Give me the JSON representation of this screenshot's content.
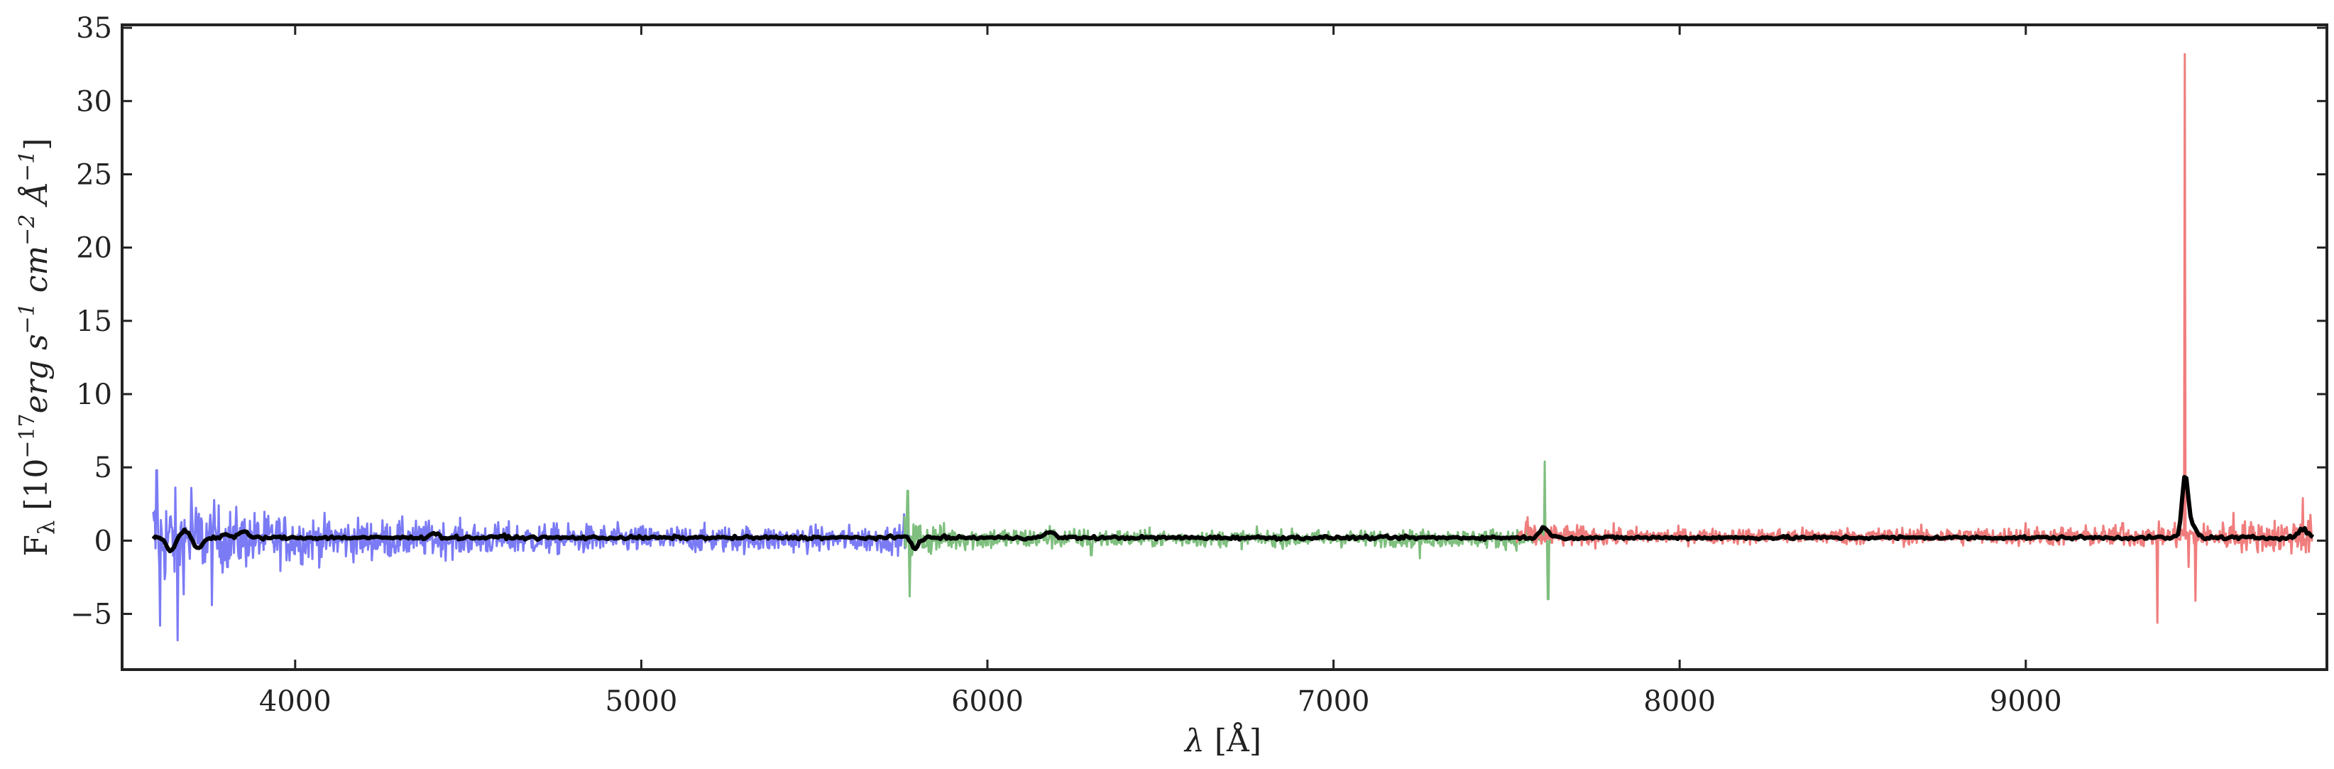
{
  "chart_data": {
    "type": "line",
    "title": "",
    "xlabel": "λ [Å]",
    "ylabel": "F_λ [10^-17 erg s^-1 cm^-2 Å^-1]",
    "ylabel_parts": {
      "main": "F",
      "sub": "λ",
      "open": " [10",
      "exp1": "−17",
      "unit1": "erg s",
      "exp2": "−1",
      "unit2": " cm",
      "exp3": "−2",
      "unit3": " Å",
      "exp4": "−1",
      "close": "]"
    },
    "xlabel_parts": {
      "lambda": "λ",
      "unit": " [Å]"
    },
    "xlim": [
      3500,
      9870
    ],
    "ylim": [
      -8.8,
      35.2
    ],
    "xticks": [
      4000,
      5000,
      6000,
      7000,
      8000,
      9000
    ],
    "yticks": [
      -5,
      0,
      5,
      10,
      15,
      20,
      25,
      30,
      35
    ],
    "xtick_labels": [
      "4000",
      "5000",
      "6000",
      "7000",
      "8000",
      "9000"
    ],
    "ytick_labels": [
      "−5",
      "0",
      "5",
      "10",
      "15",
      "20",
      "25",
      "30",
      "35"
    ],
    "grid": false,
    "series": [
      {
        "name": "blue arm",
        "color": "#7b7bf5",
        "x_range": [
          3590,
          5780
        ],
        "noise_envelope": [
          [
            3590,
            3.6
          ],
          [
            3700,
            2.6
          ],
          [
            3850,
            1.9
          ],
          [
            4100,
            1.4
          ],
          [
            4500,
            1.1
          ],
          [
            5000,
            0.9
          ],
          [
            5500,
            0.85
          ],
          [
            5780,
            0.9
          ]
        ],
        "baseline": 0.1,
        "spikes": [
          [
            3600,
            4.8
          ],
          [
            3610,
            -5.8
          ],
          [
            3660,
            -6.8
          ],
          [
            3700,
            3.6
          ],
          [
            3760,
            -4.4
          ],
          [
            5760,
            1.8
          ]
        ]
      },
      {
        "name": "green arm",
        "color": "#7fbf7f",
        "x_range": [
          5760,
          7630
        ],
        "noise_envelope": [
          [
            5760,
            1.5
          ],
          [
            5900,
            0.8
          ],
          [
            6500,
            0.55
          ],
          [
            7200,
            0.55
          ],
          [
            7630,
            0.7
          ]
        ],
        "baseline": 0.15,
        "spikes": [
          [
            5770,
            3.4
          ],
          [
            5775,
            -3.8
          ],
          [
            6180,
            1.0
          ],
          [
            6300,
            -1.0
          ],
          [
            7250,
            -1.2
          ],
          [
            7610,
            5.4
          ],
          [
            7620,
            -4.0
          ]
        ]
      },
      {
        "name": "red arm",
        "color": "#f07d7d",
        "x_range": [
          7530,
          9830
        ],
        "noise_envelope": [
          [
            7530,
            0.8
          ],
          [
            8000,
            0.5
          ],
          [
            9000,
            0.6
          ],
          [
            9500,
            0.8
          ],
          [
            9830,
            1.3
          ]
        ],
        "baseline": 0.3,
        "spikes": [
          [
            7560,
            1.6
          ],
          [
            9000,
            1.2
          ],
          [
            9280,
            1.2
          ],
          [
            9380,
            -5.6
          ],
          [
            9460,
            33.2
          ],
          [
            9470,
            -1.8
          ],
          [
            9490,
            -4.1
          ],
          [
            9600,
            1.9
          ],
          [
            9800,
            2.9
          ],
          [
            9810,
            -0.8
          ]
        ]
      },
      {
        "name": "smoothed",
        "color": "#000000",
        "x_range": [
          3590,
          9830
        ],
        "baseline": 0.2,
        "features": [
          [
            3640,
            -0.7
          ],
          [
            3680,
            0.7
          ],
          [
            3720,
            -0.5
          ],
          [
            3800,
            0.4
          ],
          [
            3850,
            0.6
          ],
          [
            4400,
            0.5
          ],
          [
            4600,
            0.3
          ],
          [
            5770,
            0.4
          ],
          [
            5790,
            -0.5
          ],
          [
            6180,
            0.6
          ],
          [
            7610,
            0.9
          ],
          [
            9460,
            4.3
          ],
          [
            9480,
            1.0
          ],
          [
            9800,
            0.8
          ]
        ]
      }
    ]
  }
}
